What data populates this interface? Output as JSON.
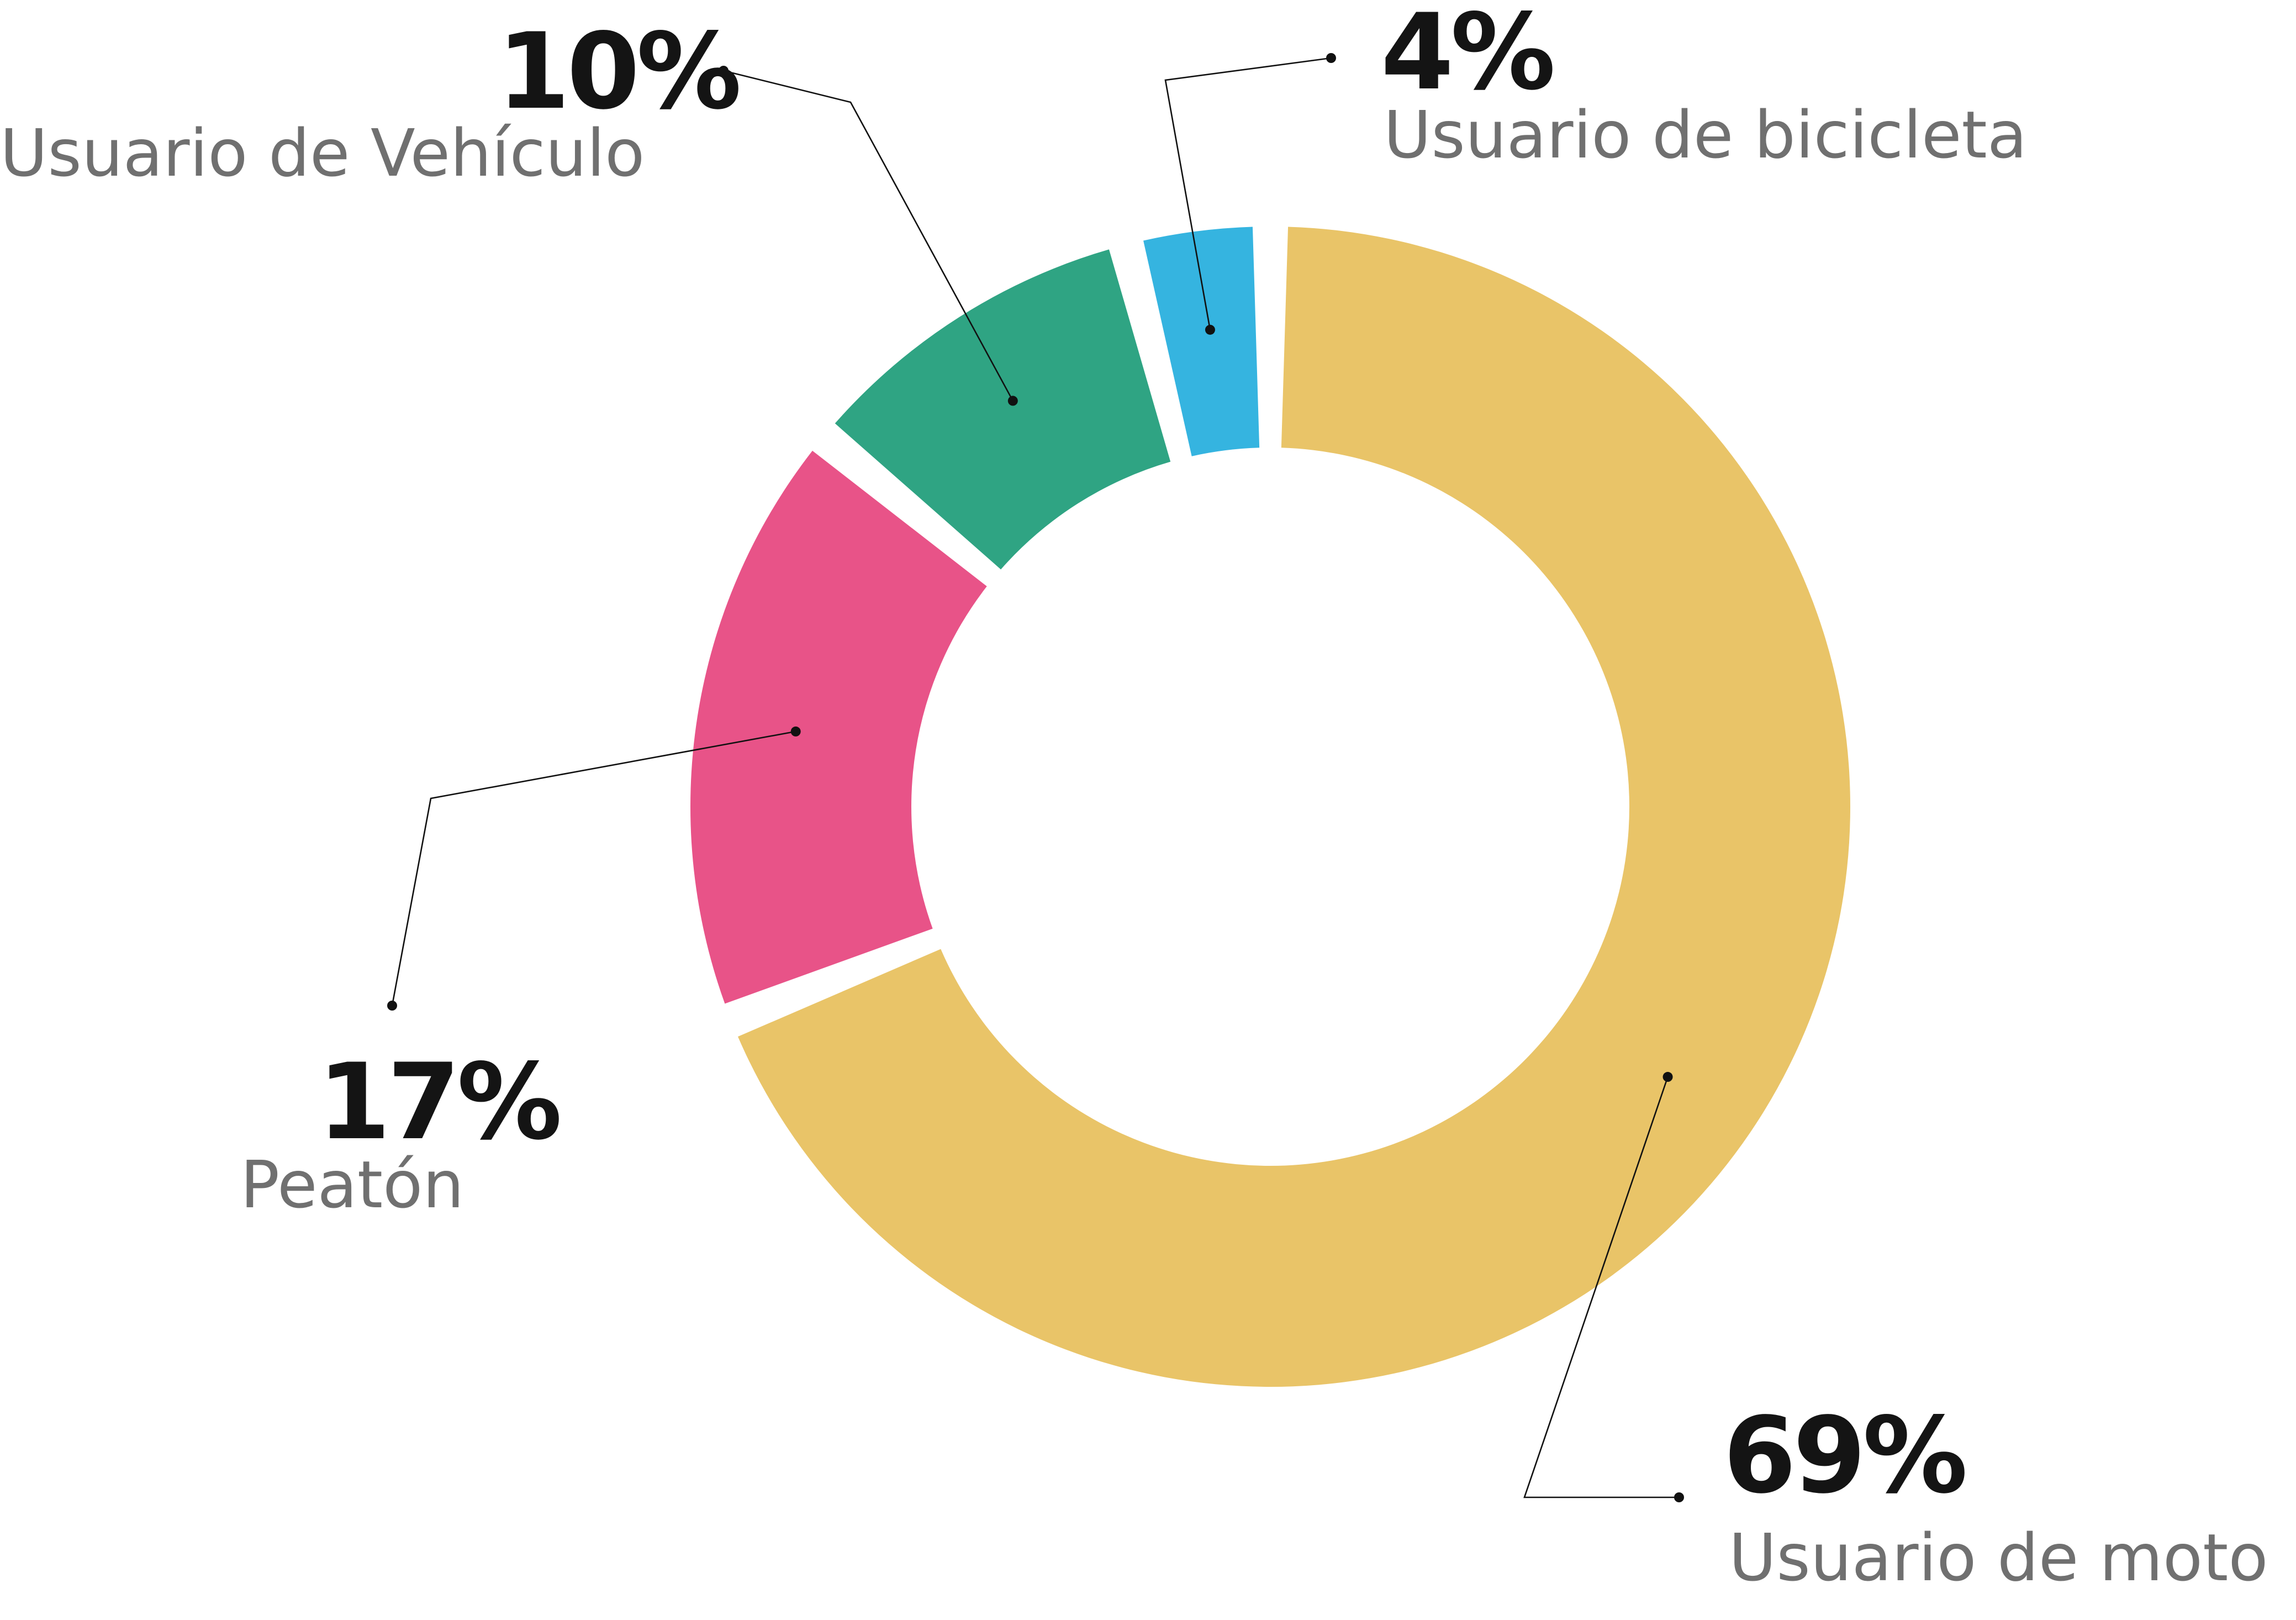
{
  "chart_data": {
    "type": "pie",
    "categories": [
      "Usuario de moto",
      "Peatón",
      "Usuario de Vehículo",
      "Usuario de bicicleta"
    ],
    "values": [
      69,
      17,
      10,
      4
    ],
    "value_labels": [
      "69%",
      "17%",
      "10%",
      "4%"
    ],
    "colors": [
      "#E9C468",
      "#E85388",
      "#2FA483",
      "#35B4E0"
    ],
    "title": "",
    "xlabel": "",
    "ylabel": "",
    "legend": "none",
    "grid": false
  }
}
